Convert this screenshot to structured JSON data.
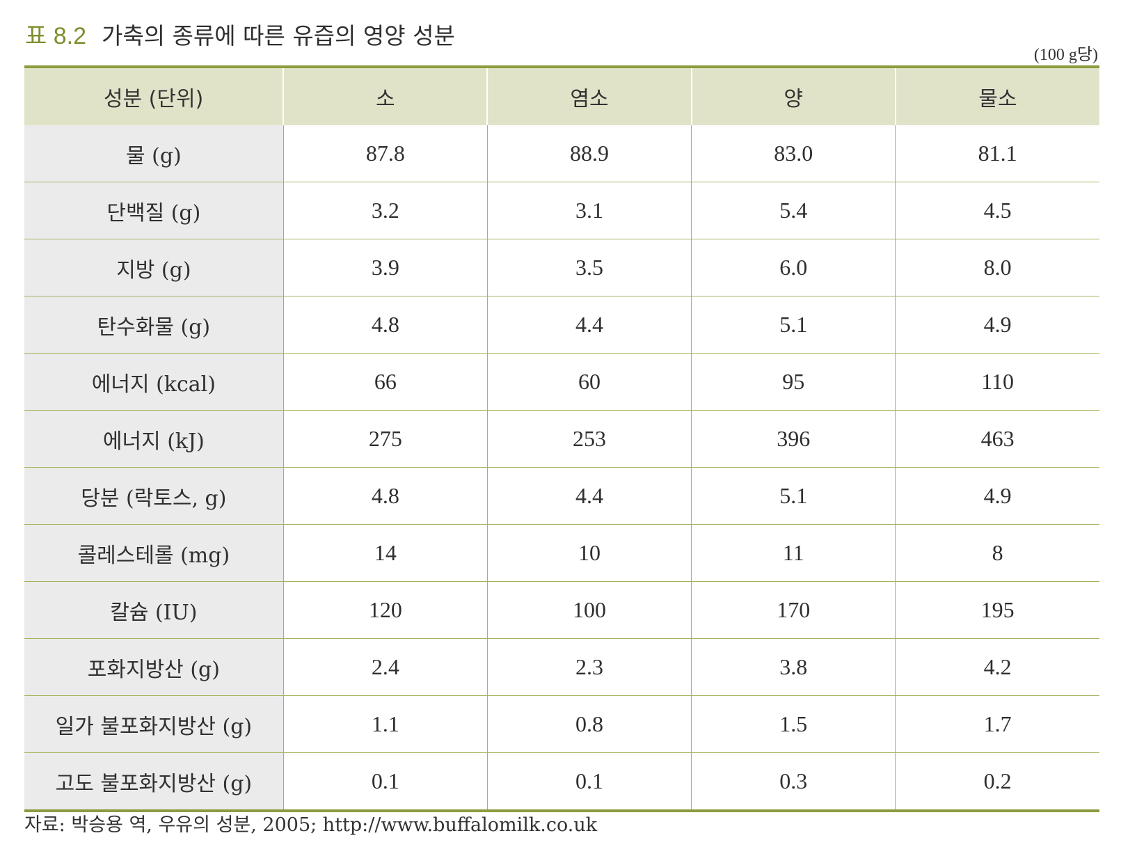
{
  "header": {
    "table_label": "표 8.2",
    "table_title": "가축의 종류에 따른 유즙의 영양 성분",
    "unit_note": "(100 g당)"
  },
  "table": {
    "columns": [
      "성분 (단위)",
      "소",
      "염소",
      "양",
      "물소"
    ],
    "rows": [
      {
        "label": "물 (g)",
        "values": [
          "87.8",
          "88.9",
          "83.0",
          "81.1"
        ]
      },
      {
        "label": "단백질 (g)",
        "values": [
          "3.2",
          "3.1",
          "5.4",
          "4.5"
        ]
      },
      {
        "label": "지방 (g)",
        "values": [
          "3.9",
          "3.5",
          "6.0",
          "8.0"
        ]
      },
      {
        "label": "탄수화물 (g)",
        "values": [
          "4.8",
          "4.4",
          "5.1",
          "4.9"
        ]
      },
      {
        "label": "에너지 (kcal)",
        "values": [
          "66",
          "60",
          "95",
          "110"
        ]
      },
      {
        "label": "에너지 (kJ)",
        "values": [
          "275",
          "253",
          "396",
          "463"
        ]
      },
      {
        "label": "당분 (락토스, g)",
        "values": [
          "4.8",
          "4.4",
          "5.1",
          "4.9"
        ]
      },
      {
        "label": "콜레스테롤 (mg)",
        "values": [
          "14",
          "10",
          "11",
          "8"
        ]
      },
      {
        "label": "칼슘 (IU)",
        "values": [
          "120",
          "100",
          "170",
          "195"
        ]
      },
      {
        "label": "포화지방산 (g)",
        "values": [
          "2.4",
          "2.3",
          "3.8",
          "4.2"
        ]
      },
      {
        "label": "일가 불포화지방산 (g)",
        "values": [
          "1.1",
          "0.8",
          "1.5",
          "1.7"
        ]
      },
      {
        "label": "고도 불포화지방산 (g)",
        "values": [
          "0.1",
          "0.1",
          "0.3",
          "0.2"
        ]
      }
    ]
  },
  "footer": {
    "source": "자료: 박승용 역, 우유의 성분, 2005; http://www.buffalomilk.co.uk"
  },
  "colors": {
    "accent": "#7d8f2e",
    "rule": "#8b9b3d",
    "header_bg": "#e1e3c9",
    "rowhead_bg": "#ebebeb"
  }
}
